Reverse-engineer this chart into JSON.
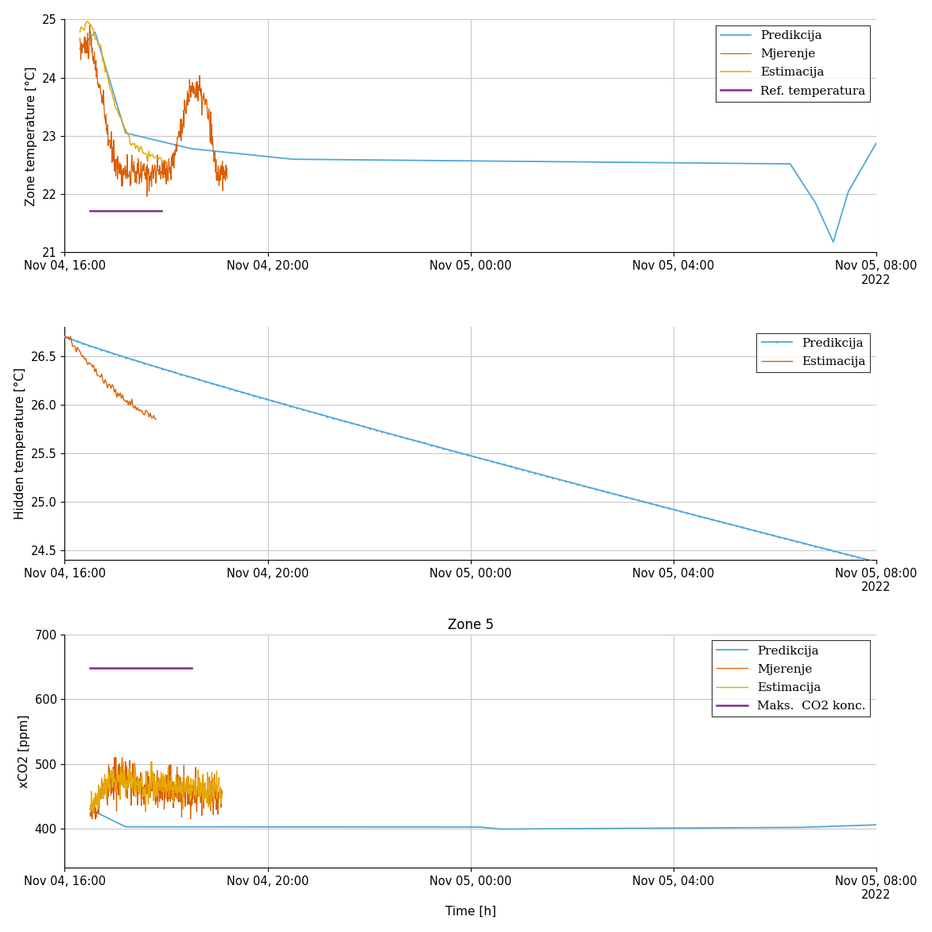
{
  "title": "Zone 5",
  "subplot1": {
    "ylabel": "Zone temperature [°C]",
    "ylim": [
      21,
      25
    ],
    "yticks": [
      21,
      22,
      23,
      24,
      25
    ],
    "legend": [
      "Predikcija",
      "Mjerenje",
      "Estimacija",
      "Ref. temperatura"
    ],
    "colors": [
      "#4fa8d8",
      "#d95f02",
      "#e6a800",
      "#7b2d8b"
    ]
  },
  "subplot2": {
    "ylabel": "Hidden temperature [°C]",
    "ylim": [
      24.4,
      26.8
    ],
    "yticks": [
      24.5,
      25.0,
      25.5,
      26.0,
      26.5
    ],
    "legend": [
      "Predikcija",
      "Estimacija"
    ],
    "colors": [
      "#4fa8d8",
      "#d95f02"
    ]
  },
  "subplot3": {
    "title": "Zone 5",
    "ylabel": "xCO2 [ppm]",
    "xlabel": "Time [h]",
    "ylim": [
      340,
      700
    ],
    "yticks": [
      400,
      500,
      600,
      700
    ],
    "legend": [
      "Predikcija",
      "Mjerenje",
      "Estimacija",
      "Maks.  CO2 konc."
    ],
    "colors": [
      "#4fa8d8",
      "#d95f02",
      "#e6a800",
      "#7b2d8b"
    ]
  },
  "xtick_labels": [
    "Nov 04, 16:00",
    "Nov 04, 20:00",
    "Nov 05, 00:00",
    "Nov 05, 04:00",
    "Nov 05, 08:00\n2022"
  ],
  "background_color": "#ffffff",
  "grid_color": "#c8c8c8"
}
